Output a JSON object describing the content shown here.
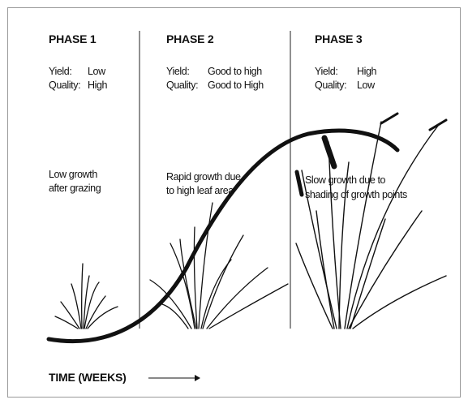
{
  "phases": [
    {
      "title": "PHASE 1",
      "yield_label": "Yield:",
      "yield_value": "Low",
      "quality_label": "Quality:",
      "quality_value": "High",
      "description": [
        "Low growth",
        "after grazing"
      ]
    },
    {
      "title": "PHASE 2",
      "yield_label": "Yield:",
      "yield_value": "Good to high",
      "quality_label": "Quality:",
      "quality_value": "Good to High",
      "description": [
        "Rapid growth due",
        "to high leaf area"
      ]
    },
    {
      "title": "PHASE 3",
      "yield_label": "Yield:",
      "yield_value": "High",
      "quality_label": "Quality:",
      "quality_value": "Low",
      "description": [
        "Slow growth due to",
        "shading of growth points"
      ]
    }
  ],
  "x_axis_label": "TIME (WEEKS)"
}
